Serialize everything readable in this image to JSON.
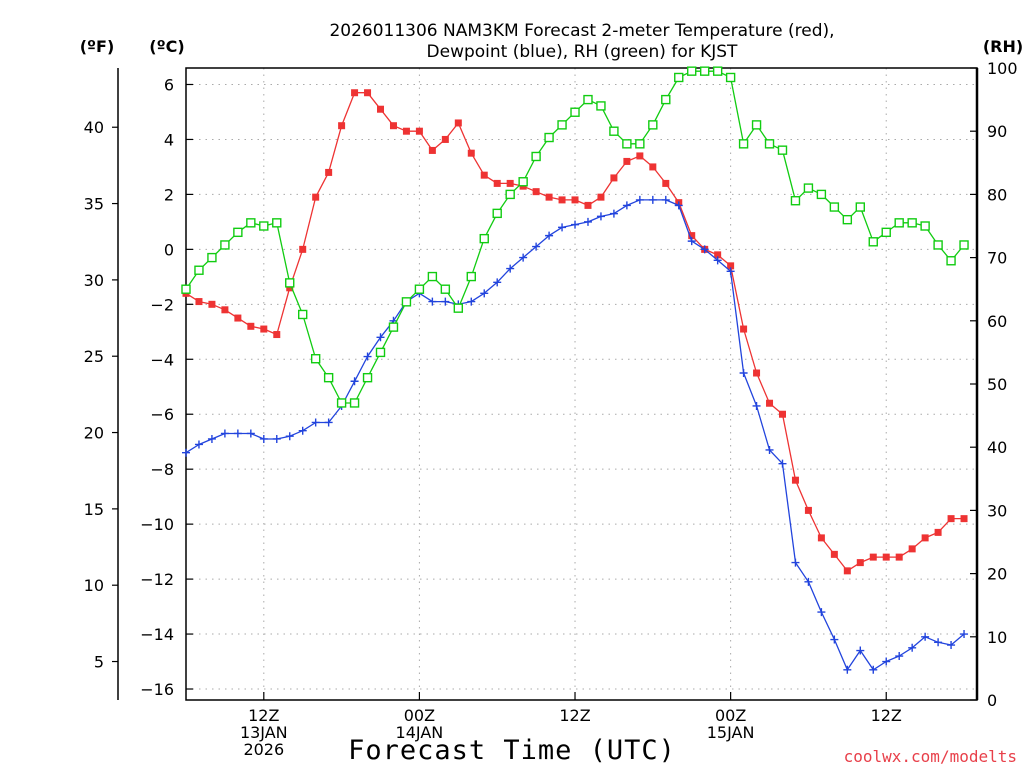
{
  "chart_data": {
    "type": "line",
    "title_lines": [
      "2026011306 NAM3KM Forecast 2-meter Temperature (red),",
      "Dewpoint (blue), RH (green) for KJST"
    ],
    "xlabel": "Forecast Time (UTC)",
    "credit": "coolwx.com/modelts",
    "units": {
      "fahrenheit": "(ºF)",
      "celsius": "(ºC)",
      "rh": "(RH)"
    },
    "x_unit": "hours from 2026-01-13 06Z",
    "xlim": [
      0,
      61
    ],
    "ylim_celsius": [
      -16.4,
      6.6
    ],
    "ylim_rh": [
      0,
      100
    ],
    "yticks_celsius": [
      "6",
      "4",
      "2",
      "0",
      "−2",
      "−4",
      "−6",
      "−8",
      "−10",
      "−12",
      "−14",
      "−16"
    ],
    "yticks_celsius_values": [
      6,
      4,
      2,
      0,
      -2,
      -4,
      -6,
      -8,
      -10,
      -12,
      -14,
      -16
    ],
    "yticks_fahrenheit": [
      "40",
      "35",
      "30",
      "25",
      "20",
      "15",
      "10",
      "5"
    ],
    "yticks_fahrenheit_values": [
      40,
      35,
      30,
      25,
      20,
      15,
      10,
      5
    ],
    "yticks_rh": [
      "100",
      "90",
      "80",
      "70",
      "60",
      "50",
      "40",
      "30",
      "20",
      "10",
      "0"
    ],
    "yticks_rh_values": [
      100,
      90,
      80,
      70,
      60,
      50,
      40,
      30,
      20,
      10,
      0
    ],
    "xticks": [
      {
        "x": 6,
        "lines": [
          "12Z",
          "13JAN",
          "2026"
        ]
      },
      {
        "x": 18,
        "lines": [
          "00Z",
          "14JAN"
        ]
      },
      {
        "x": 30,
        "lines": [
          "12Z"
        ]
      },
      {
        "x": 42,
        "lines": [
          "00Z",
          "15JAN"
        ]
      },
      {
        "x": 54,
        "lines": [
          "12Z"
        ]
      }
    ],
    "series": [
      {
        "name": "Temperature",
        "unit": "°C",
        "axis": "celsius",
        "color": "#ee3333",
        "marker": "filled-square",
        "values": [
          -1.6,
          -1.9,
          -2.0,
          -2.2,
          -2.5,
          -2.8,
          -2.9,
          -3.1,
          -1.4,
          0.0,
          1.9,
          2.8,
          4.5,
          5.7,
          5.7,
          5.1,
          4.5,
          4.3,
          4.3,
          3.6,
          4.0,
          4.6,
          3.5,
          2.7,
          2.4,
          2.4,
          2.3,
          2.1,
          1.9,
          1.8,
          1.8,
          1.6,
          1.9,
          2.6,
          3.2,
          3.4,
          3.0,
          2.4,
          1.7,
          0.5,
          0.0,
          -0.2,
          -0.6,
          -2.9,
          -4.5,
          -5.6,
          -6.0,
          -8.4,
          -9.5,
          -10.5,
          -11.1,
          -11.7,
          -11.4,
          -11.2,
          -11.2,
          -11.2,
          -10.9,
          -10.5,
          -10.3,
          -9.8,
          -9.8
        ]
      },
      {
        "name": "Dewpoint",
        "unit": "°C",
        "axis": "celsius",
        "color": "#2244dd",
        "marker": "plus",
        "values": [
          -7.4,
          -7.1,
          -6.9,
          -6.7,
          -6.7,
          -6.7,
          -6.9,
          -6.9,
          -6.8,
          -6.6,
          -6.3,
          -6.3,
          -5.7,
          -4.8,
          -3.9,
          -3.2,
          -2.6,
          -1.9,
          -1.6,
          -1.9,
          -1.9,
          -2.0,
          -1.9,
          -1.6,
          -1.2,
          -0.7,
          -0.3,
          0.1,
          0.5,
          0.8,
          0.9,
          1.0,
          1.2,
          1.3,
          1.6,
          1.8,
          1.8,
          1.8,
          1.6,
          0.3,
          0.0,
          -0.4,
          -0.8,
          -4.5,
          -5.7,
          -7.3,
          -7.8,
          -11.4,
          -12.1,
          -13.2,
          -14.2,
          -15.3,
          -14.6,
          -15.3,
          -15.0,
          -14.8,
          -14.5,
          -14.1,
          -14.3,
          -14.4,
          -14.0
        ]
      },
      {
        "name": "RH",
        "unit": "%",
        "axis": "rh",
        "color": "#11cc11",
        "marker": "open-square",
        "values": [
          65,
          68,
          70,
          72,
          74,
          75.5,
          75,
          75.5,
          66,
          61,
          54,
          51,
          47,
          47,
          51,
          55,
          59,
          63,
          65,
          67,
          65,
          62,
          67,
          73,
          77,
          80,
          82,
          86,
          89,
          91,
          93,
          95,
          94,
          90,
          88,
          88,
          91,
          95,
          98.5,
          99.5,
          99.5,
          99.5,
          98.5,
          88,
          91,
          88,
          87,
          79,
          81,
          80,
          78,
          76,
          78,
          72.5,
          74,
          75.5,
          75.5,
          75,
          72,
          69.5,
          72
        ]
      }
    ]
  }
}
